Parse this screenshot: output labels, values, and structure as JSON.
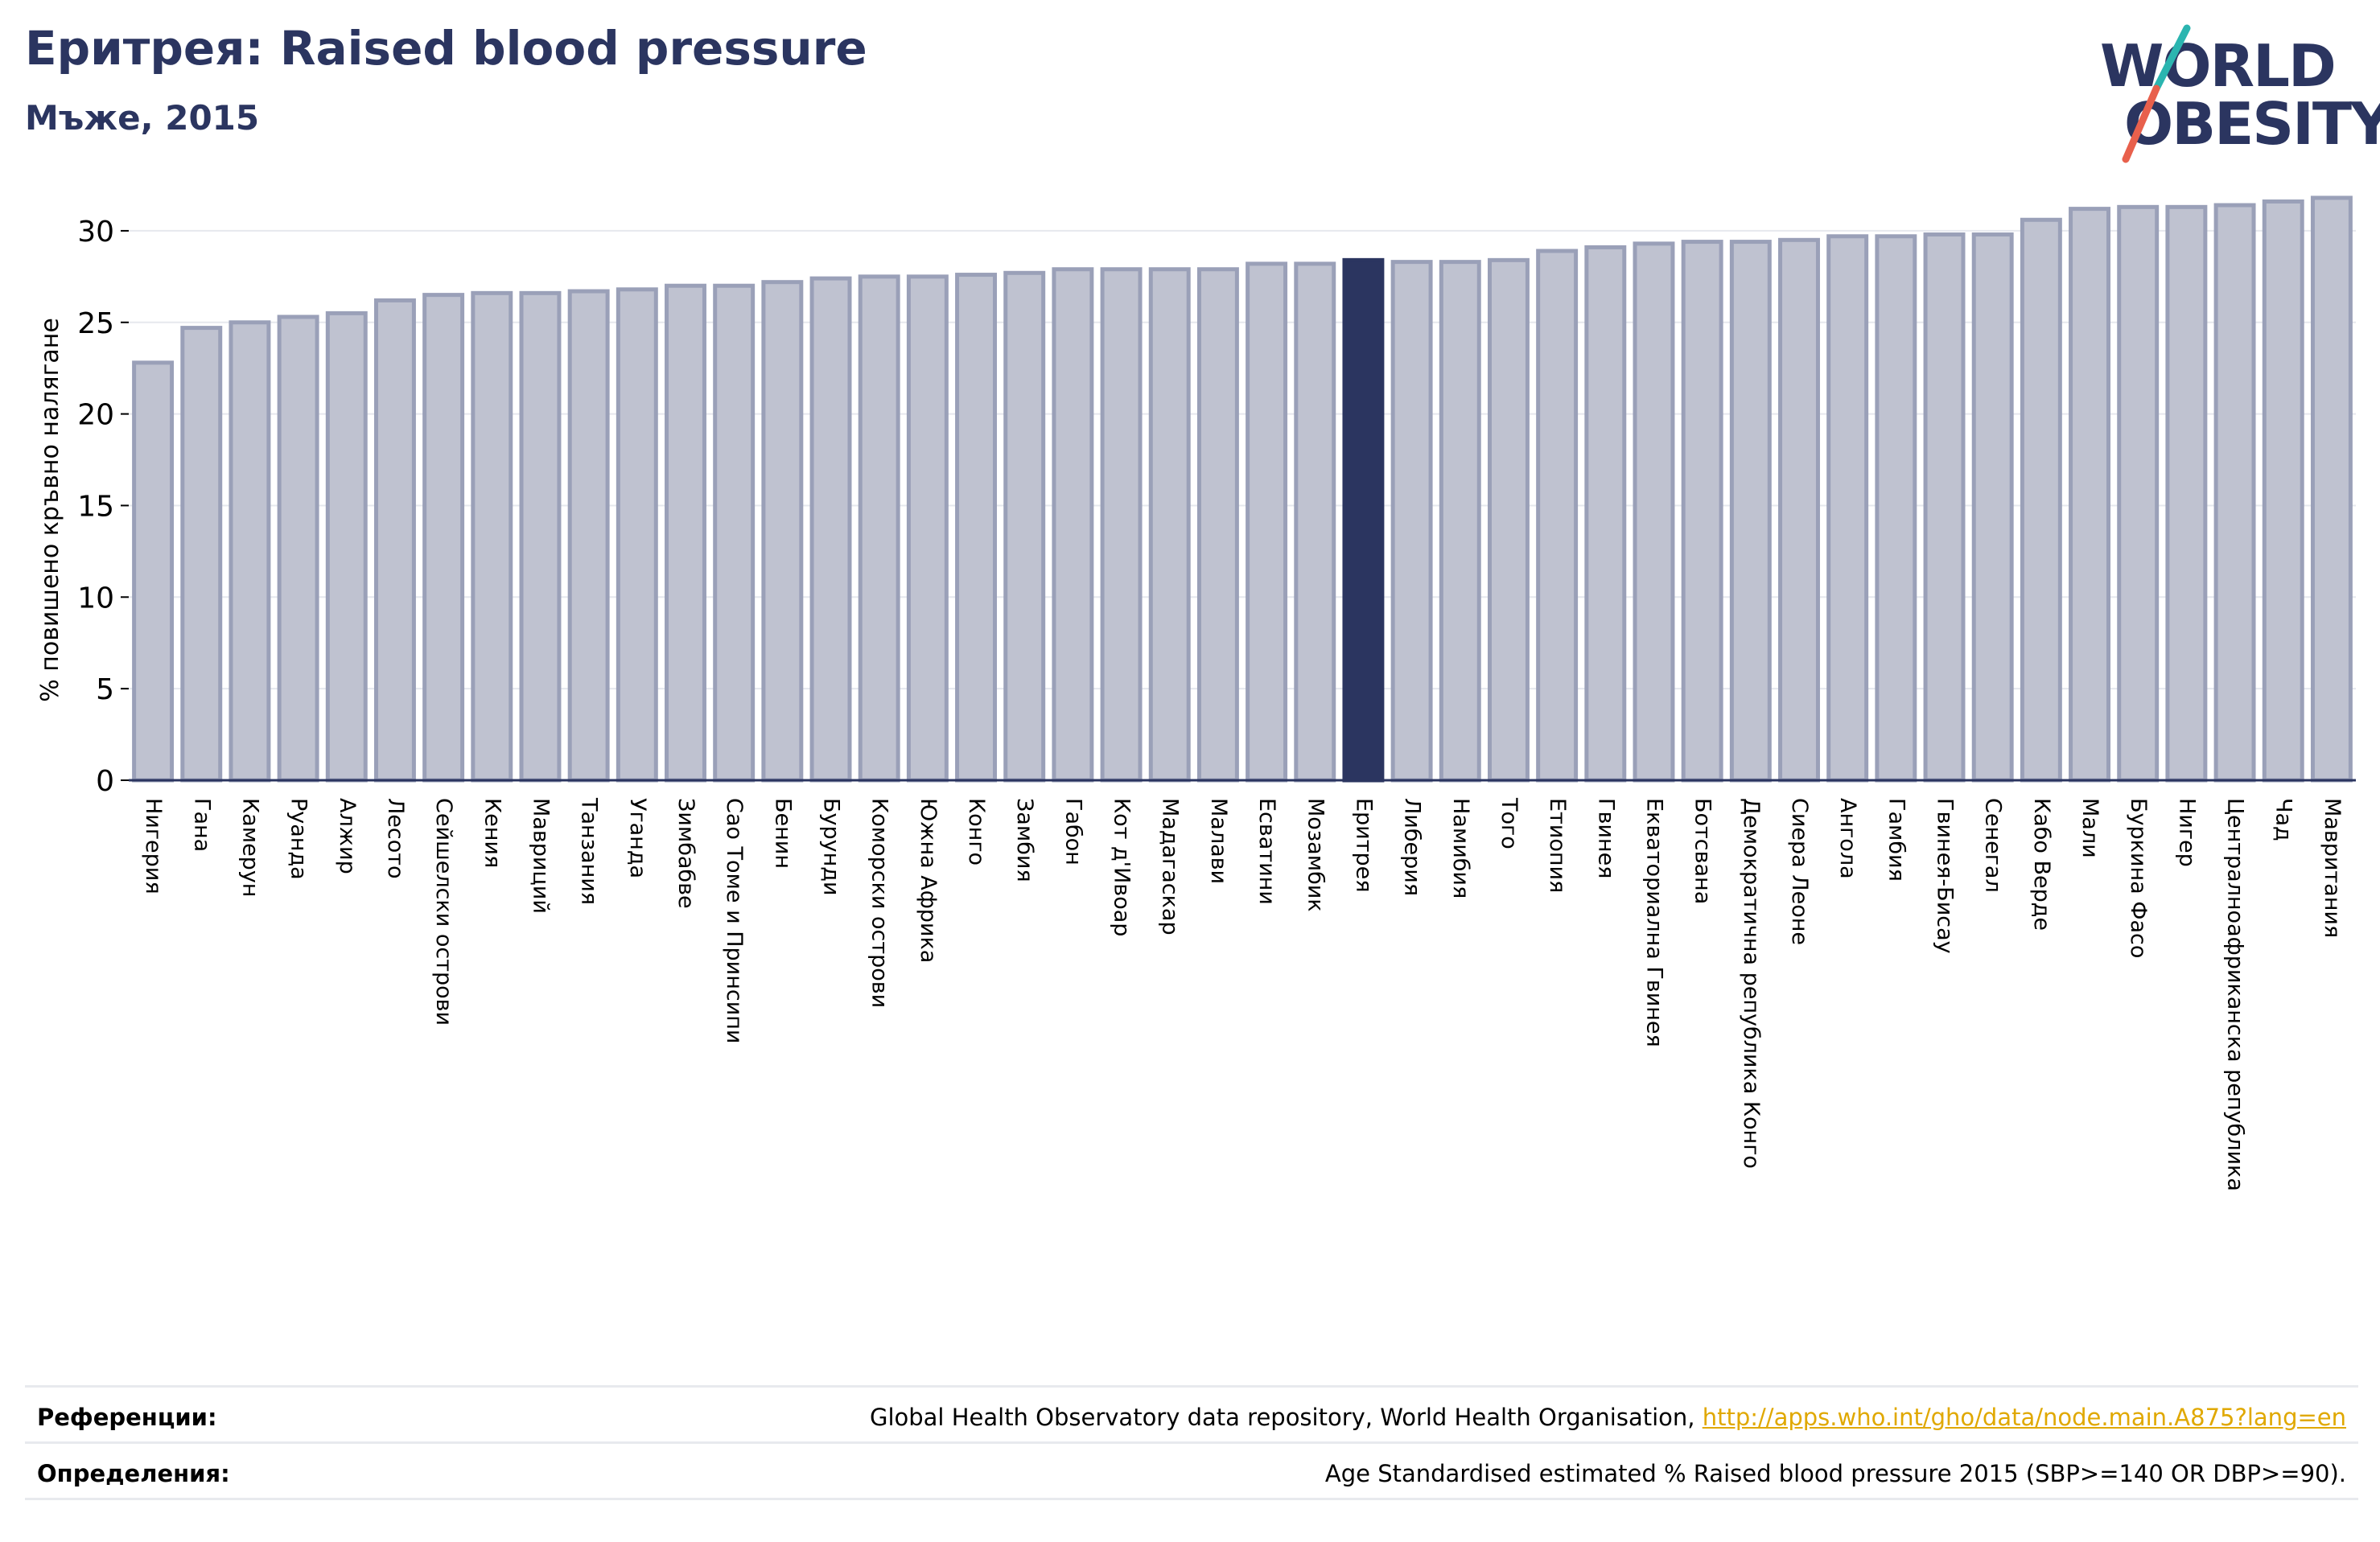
{
  "title": "Еритрея: Raised blood pressure",
  "subtitle": "Мъже, 2015",
  "logo": {
    "line1": "WORLD",
    "line2": "OBESITY"
  },
  "colors": {
    "bar": "#bfc2d0",
    "bar_edge": "#9aa0b8",
    "highlight": "#2b3560",
    "title": "#2b3560",
    "link": "#e0a800"
  },
  "chart_data": {
    "type": "bar",
    "ylabel": "% повишено кръвно налягане",
    "ylim": [
      0,
      32.5
    ],
    "yticks": [
      0,
      5,
      10,
      15,
      20,
      25,
      30
    ],
    "highlight": "Еритрея",
    "grid": true,
    "categories": [
      "Нигерия",
      "Гана",
      "Камерун",
      "Руанда",
      "Алжир",
      "Лесото",
      "Сейшелски острови",
      "Кения",
      "Мавриций",
      "Танзания",
      "Уганда",
      "Зимбабве",
      "Сао Томе и Принсипи",
      "Бенин",
      "Бурунди",
      "Коморски острови",
      "Южна Африка",
      "Конго",
      "Замбия",
      "Габон",
      "Кот д'Ивоар",
      "Мадагаскар",
      "Малави",
      "Есватини",
      "Мозамбик",
      "Еритрея",
      "Либерия",
      "Намибия",
      "Того",
      "Етиопия",
      "Гвинея",
      "Екваториална Гвинея",
      "Ботсвана",
      "Демократична република Конго",
      "Сиера Леоне",
      "Ангола",
      "Гамбия",
      "Гвинея-Бисау",
      "Сенегал",
      "Кабо Верде",
      "Мали",
      "Буркина Фасо",
      "Нигер",
      "Централноафриканска република",
      "Чад",
      "Мавритания"
    ],
    "values": [
      22.8,
      24.7,
      25.0,
      25.3,
      25.5,
      26.2,
      26.5,
      26.6,
      26.6,
      26.7,
      26.8,
      27.0,
      27.0,
      27.2,
      27.4,
      27.5,
      27.5,
      27.6,
      27.7,
      27.9,
      27.9,
      27.9,
      27.9,
      28.2,
      28.2,
      28.4,
      28.3,
      28.3,
      28.4,
      28.9,
      29.1,
      29.3,
      29.4,
      29.4,
      29.5,
      29.7,
      29.7,
      29.8,
      29.8,
      30.6,
      31.2,
      31.3,
      31.3,
      31.4,
      31.6,
      31.8
    ]
  },
  "footer": {
    "references_label": "Референции:",
    "references_text": "Global Health Observatory data repository, World Health Organisation, ",
    "references_link": "http://apps.who.int/gho/data/node.main.A875?lang=en",
    "definitions_label": "Определения:",
    "definitions_text": "Age Standardised estimated % Raised blood pressure 2015 (SBP>=140 OR DBP>=90)."
  }
}
